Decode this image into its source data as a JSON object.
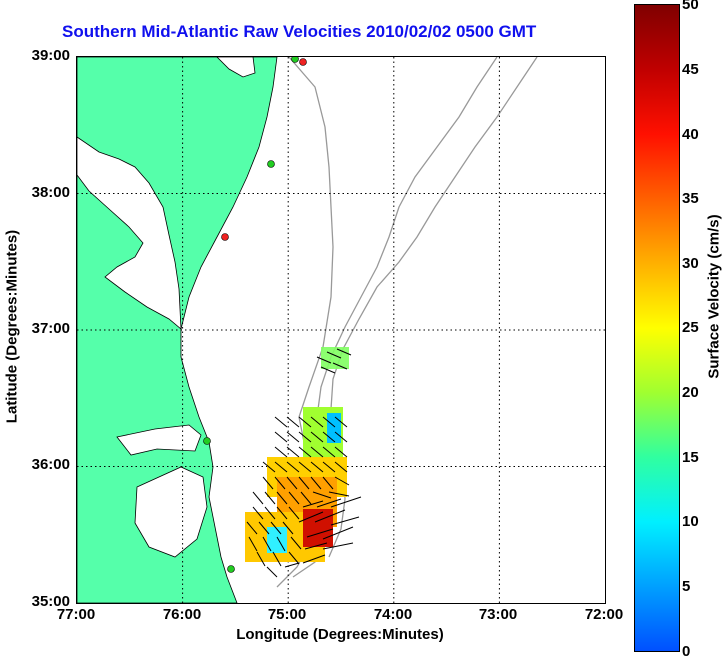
{
  "title": "Southern Mid-Atlantic Raw Velocities 2010/02/02 0500 GMT",
  "axes": {
    "xlabel": "Longitude (Degrees:Minutes)",
    "ylabel": "Latitude (Degrees:Minutes)",
    "xticks": [
      "77:00",
      "76:00",
      "75:00",
      "74:00",
      "73:00",
      "72:00"
    ],
    "yticks": [
      "39:00",
      "38:00",
      "37:00",
      "36:00",
      "35:00"
    ]
  },
  "colorbar": {
    "label": "Surface Velocity (cm/s)",
    "ticks": [
      "50",
      "45",
      "40",
      "35",
      "30",
      "25",
      "20",
      "15",
      "10",
      "5",
      "0"
    ],
    "range": [
      0,
      50
    ]
  },
  "colors": {
    "land": "#55ffaa",
    "coastline": "#000000",
    "bathymetry": "#999999",
    "title": "#1010ee",
    "station_green": "#22cc22",
    "station_red": "#ee2222"
  },
  "map": {
    "lon_range": [
      -77,
      -72
    ],
    "lat_range": [
      35,
      39
    ],
    "grid": true
  }
}
